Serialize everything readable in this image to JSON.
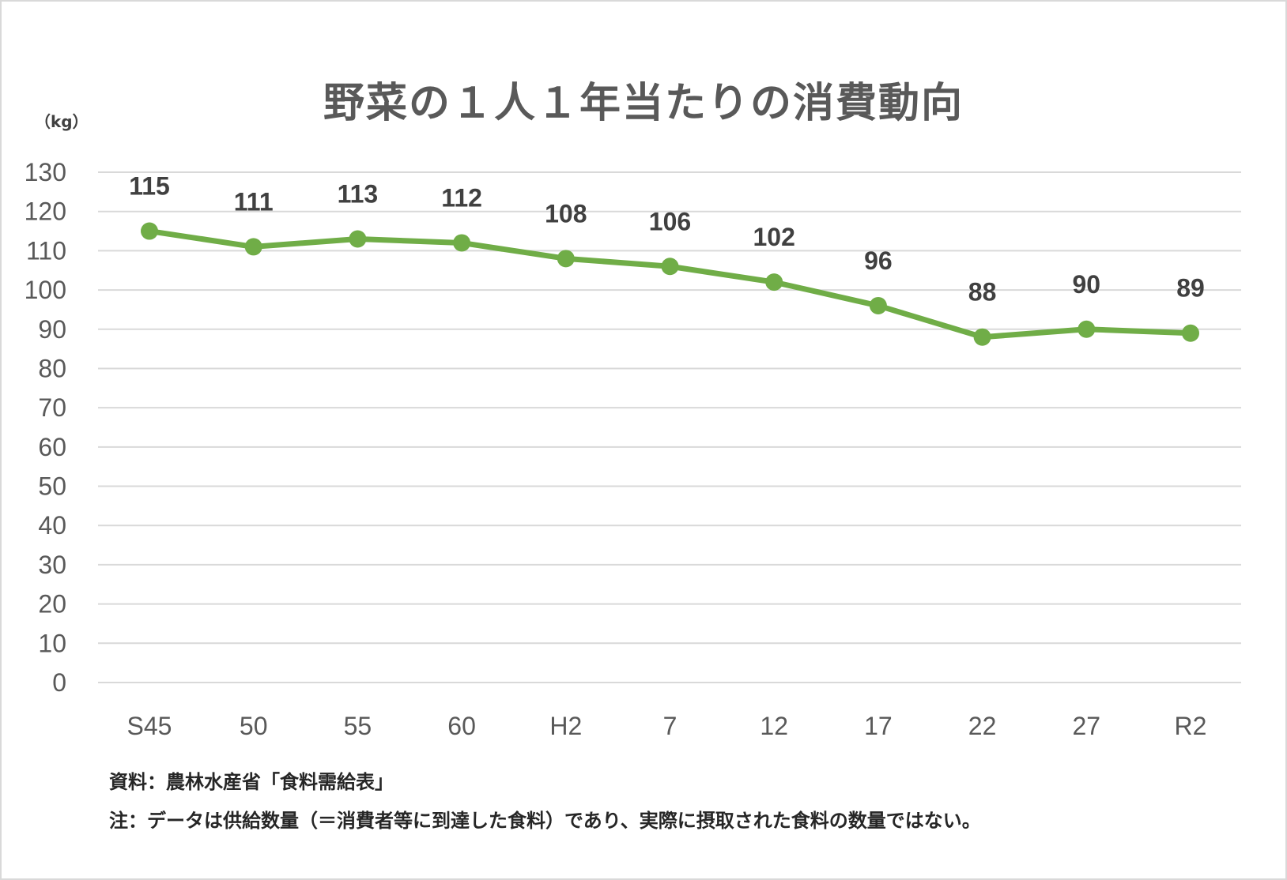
{
  "chart_data": {
    "type": "line",
    "title": "野菜の１人１年当たりの消費動向",
    "ylabel": "（kg）",
    "xlabel": "",
    "categories": [
      "S45",
      "50",
      "55",
      "60",
      "H2",
      "7",
      "12",
      "17",
      "22",
      "27",
      "R2"
    ],
    "series": [
      {
        "values": [
          115,
          111,
          113,
          112,
          108,
          106,
          102,
          96,
          88,
          90,
          89
        ]
      }
    ],
    "ylim": [
      0,
      130
    ],
    "yticks": [
      0,
      10,
      20,
      30,
      40,
      50,
      60,
      70,
      80,
      90,
      100,
      110,
      120,
      130
    ],
    "grid": true,
    "legend": "none",
    "data_labels": true,
    "line_color": "#70ad47",
    "grid_color": "#d9d9d9"
  },
  "notes": {
    "source": "資料：農林水産省「食料需給表」",
    "caveat": "注：データは供給数量（＝消費者等に到達した食料）であり、実際に摂取された食料の数量ではない。"
  }
}
